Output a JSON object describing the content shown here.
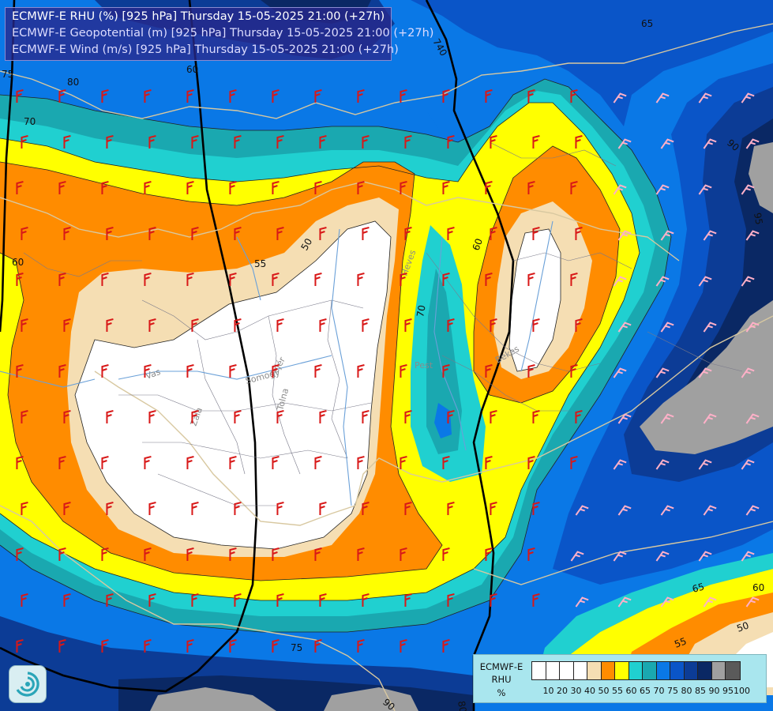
{
  "header": {
    "line1": "ECMWF-E RHU (%) [925 hPa] Thursday 15-05-2025 21:00 (+27h)",
    "line2": "ECMWF-E Geopotential (m) [925 hPa] Thursday 15-05-2025 21:00 (+27h)",
    "line3": "ECMWF-E Wind (m/s) [925 hPa] Thursday 15-05-2025 21:00 (+27h)"
  },
  "legend": {
    "title1": "ECMWF-E",
    "title2": "RHU",
    "unit": "%",
    "ticks": [
      "10",
      "20",
      "30",
      "40",
      "50",
      "55",
      "60",
      "65",
      "70",
      "75",
      "80",
      "85",
      "90",
      "95",
      "100"
    ],
    "colors": [
      "#ffffff",
      "#ffffff",
      "#ffffff",
      "#ffffff",
      "#f5deb3",
      "#ff8c00",
      "#ffff00",
      "#20d0d0",
      "#1aa8b0",
      "#0a78e6",
      "#0a55c8",
      "#0c3c96",
      "#0a2864",
      "#a0a0a0",
      "#5a5a5a"
    ]
  },
  "palette": {
    "white": "#ffffff",
    "wheat": "#f5deb3",
    "orange": "#ff8c00",
    "yellow": "#ffff00",
    "cyan": "#20d0d0",
    "teal": "#1aa8b0",
    "blue": "#0a78e6",
    "blue2": "#0a55c8",
    "navy": "#0c3c96",
    "navy2": "#0a2864",
    "grey": "#a0a0a0",
    "wind_barb": "#d81818",
    "wind_barb_light": "#ffb0c8"
  },
  "map_labels": {
    "contour_values": [
      "75",
      "80",
      "70",
      "60",
      "740",
      "65",
      "50",
      "55",
      "60",
      "70",
      "90",
      "95",
      "65",
      "60",
      "50",
      "55",
      "75",
      "90",
      "80",
      "60"
    ],
    "rivers": [
      "Vas",
      "Somogy",
      "Fejér",
      "Zala",
      "Tolna",
      "Bekes",
      "Pest",
      "Heves"
    ]
  },
  "logo": {
    "name": "ecmwf-logo"
  }
}
